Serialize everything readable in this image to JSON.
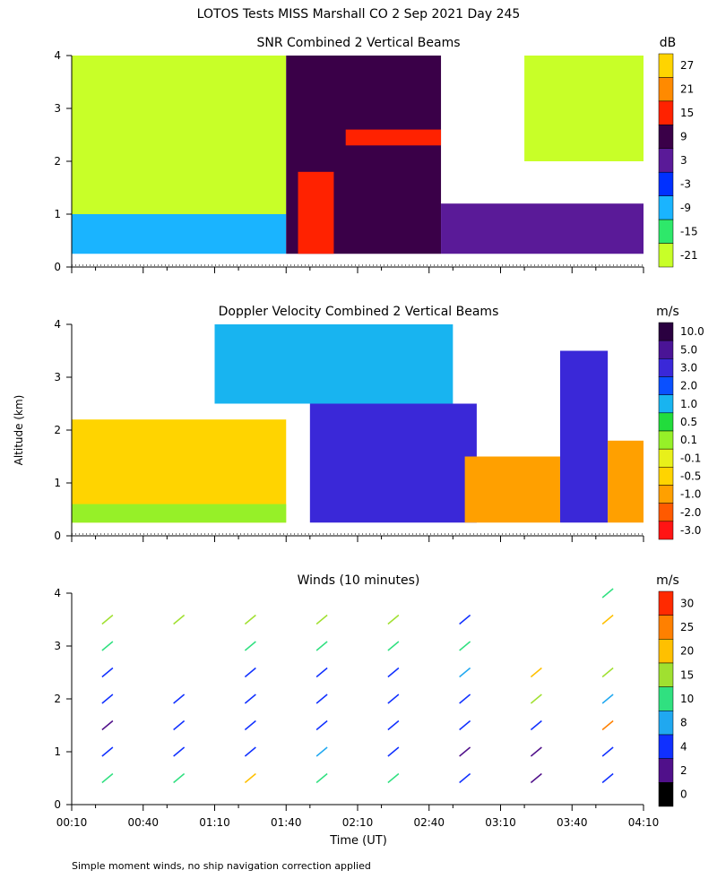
{
  "figure": {
    "title": "LOTOS Tests MISS Marshall CO    2 Sep 2021 Day 245",
    "ylabel": "Altitude (km)",
    "xlabel": "Time (UT)",
    "footnote": "Simple moment winds, no ship navigation correction applied",
    "x_ticks": [
      "00:10",
      "00:40",
      "01:10",
      "01:40",
      "02:10",
      "02:40",
      "03:10",
      "03:40",
      "04:10"
    ],
    "y_ticks": [
      "0",
      "1",
      "2",
      "3",
      "4"
    ]
  },
  "chart_data": [
    {
      "type": "heatmap",
      "title": "SNR Combined 2 Vertical Beams",
      "xlim": [
        "00:10",
        "04:10"
      ],
      "ylim": [
        0,
        4
      ],
      "colorbar": {
        "unit": "dB",
        "labels": [
          "27",
          "21",
          "15",
          "9",
          "3",
          "-3",
          "-9",
          "-15",
          "-21"
        ],
        "colors": [
          "#ffd400",
          "#ff8a00",
          "#ff2200",
          "#3a0048",
          "#5a1a98",
          "#0030ff",
          "#1ab4ff",
          "#2ee86a",
          "#c8ff28"
        ]
      },
      "regions": [
        {
          "t": [
            "00:10",
            "01:40"
          ],
          "alt": [
            1.0,
            4.0
          ],
          "level": "-21"
        },
        {
          "t": [
            "00:10",
            "01:40"
          ],
          "alt": [
            0.25,
            1.0
          ],
          "level": "-9"
        },
        {
          "t": [
            "01:40",
            "02:45"
          ],
          "alt": [
            0.25,
            4.0
          ],
          "level": "9"
        },
        {
          "t": [
            "02:05",
            "02:45"
          ],
          "alt": [
            2.3,
            2.6
          ],
          "level": "15"
        },
        {
          "t": [
            "01:45",
            "02:00"
          ],
          "alt": [
            0.25,
            1.8
          ],
          "level": "15"
        },
        {
          "t": [
            "02:45",
            "04:10"
          ],
          "alt": [
            0.25,
            1.2
          ],
          "level": "3"
        },
        {
          "t": [
            "03:20",
            "04:10"
          ],
          "alt": [
            2.0,
            4.0
          ],
          "level": "-21"
        }
      ]
    },
    {
      "type": "heatmap",
      "title": "Doppler Velocity Combined 2 Vertical Beams",
      "xlim": [
        "00:10",
        "04:10"
      ],
      "ylim": [
        0,
        4
      ],
      "colorbar": {
        "unit": "m/s",
        "labels": [
          "10.0",
          "5.0",
          "3.0",
          "2.0",
          "1.0",
          "0.5",
          "0.1",
          "-0.1",
          "-0.5",
          "-1.0",
          "-2.0",
          "-3.0"
        ],
        "colors": [
          "#2a0040",
          "#4a1496",
          "#3a28d8",
          "#0a50ff",
          "#18b4f0",
          "#22dc3c",
          "#96f028",
          "#e8f01a",
          "#ffd400",
          "#ffa000",
          "#ff5a00",
          "#ff1414"
        ]
      },
      "regions": [
        {
          "t": [
            "00:10",
            "01:40"
          ],
          "alt": [
            0.25,
            2.2
          ],
          "level": "-0.5"
        },
        {
          "t": [
            "00:10",
            "01:40"
          ],
          "alt": [
            0.25,
            0.6
          ],
          "level": "0.1"
        },
        {
          "t": [
            "01:10",
            "02:50"
          ],
          "alt": [
            2.5,
            4.0
          ],
          "level": "1.0"
        },
        {
          "t": [
            "01:50",
            "03:00"
          ],
          "alt": [
            0.25,
            2.5
          ],
          "level": "3.0"
        },
        {
          "t": [
            "02:55",
            "03:35"
          ],
          "alt": [
            0.25,
            1.5
          ],
          "level": "-1.0"
        },
        {
          "t": [
            "03:35",
            "03:55"
          ],
          "alt": [
            0.25,
            3.5
          ],
          "level": "3.0"
        },
        {
          "t": [
            "03:55",
            "04:10"
          ],
          "alt": [
            0.25,
            1.8
          ],
          "level": "-1.0"
        }
      ]
    },
    {
      "type": "scatter",
      "title": "Winds (10 minutes)",
      "xlim": [
        "00:10",
        "04:10"
      ],
      "ylim": [
        0,
        4
      ],
      "colorbar": {
        "unit": "m/s",
        "labels": [
          "30",
          "25",
          "20",
          "15",
          "10",
          "8",
          "4",
          "2",
          "0"
        ],
        "colors": [
          "#ff2a00",
          "#ff8000",
          "#ffc000",
          "#a0e030",
          "#30e080",
          "#20a8f0",
          "#1030ff",
          "#50108a",
          "#000000"
        ]
      },
      "profiles": [
        {
          "time": "00:25",
          "points": [
            {
              "alt": 0.5,
              "speed": 14
            },
            {
              "alt": 1.0,
              "speed": 7
            },
            {
              "alt": 1.5,
              "speed": 3
            },
            {
              "alt": 2.0,
              "speed": 4
            },
            {
              "alt": 2.5,
              "speed": 6
            },
            {
              "alt": 3.0,
              "speed": 10
            },
            {
              "alt": 3.5,
              "speed": 15
            }
          ]
        },
        {
          "time": "00:55",
          "points": [
            {
              "alt": 0.5,
              "speed": 10
            },
            {
              "alt": 1.0,
              "speed": 5
            },
            {
              "alt": 1.5,
              "speed": 4
            },
            {
              "alt": 2.0,
              "speed": 5
            },
            {
              "alt": 3.5,
              "speed": 18
            }
          ]
        },
        {
          "time": "01:25",
          "points": [
            {
              "alt": 0.5,
              "speed": 21
            },
            {
              "alt": 1.0,
              "speed": 6
            },
            {
              "alt": 1.5,
              "speed": 4
            },
            {
              "alt": 2.0,
              "speed": 5
            },
            {
              "alt": 2.5,
              "speed": 4
            },
            {
              "alt": 3.0,
              "speed": 12
            },
            {
              "alt": 3.5,
              "speed": 15
            }
          ]
        },
        {
          "time": "01:55",
          "points": [
            {
              "alt": 0.5,
              "speed": 10
            },
            {
              "alt": 1.0,
              "speed": 8
            },
            {
              "alt": 1.5,
              "speed": 5
            },
            {
              "alt": 2.0,
              "speed": 4
            },
            {
              "alt": 2.5,
              "speed": 5
            },
            {
              "alt": 3.0,
              "speed": 13
            },
            {
              "alt": 3.5,
              "speed": 16
            }
          ]
        },
        {
          "time": "02:25",
          "points": [
            {
              "alt": 0.5,
              "speed": 11
            },
            {
              "alt": 1.0,
              "speed": 5
            },
            {
              "alt": 1.5,
              "speed": 4
            },
            {
              "alt": 2.0,
              "speed": 4
            },
            {
              "alt": 2.5,
              "speed": 6
            },
            {
              "alt": 3.0,
              "speed": 12
            },
            {
              "alt": 3.5,
              "speed": 17
            }
          ]
        },
        {
          "time": "02:55",
          "points": [
            {
              "alt": 0.5,
              "speed": 4
            },
            {
              "alt": 1.0,
              "speed": 3
            },
            {
              "alt": 1.5,
              "speed": 4
            },
            {
              "alt": 2.0,
              "speed": 5
            },
            {
              "alt": 2.5,
              "speed": 9
            },
            {
              "alt": 3.0,
              "speed": 13
            },
            {
              "alt": 3.5,
              "speed": 5
            }
          ]
        },
        {
          "time": "03:25",
          "points": [
            {
              "alt": 0.5,
              "speed": 2
            },
            {
              "alt": 1.0,
              "speed": 3
            },
            {
              "alt": 1.5,
              "speed": 6
            },
            {
              "alt": 2.0,
              "speed": 16
            },
            {
              "alt": 2.5,
              "speed": 22
            }
          ]
        },
        {
          "time": "03:55",
          "points": [
            {
              "alt": 0.5,
              "speed": 5
            },
            {
              "alt": 1.0,
              "speed": 6
            },
            {
              "alt": 1.5,
              "speed": 28
            },
            {
              "alt": 2.0,
              "speed": 9
            },
            {
              "alt": 2.5,
              "speed": 18
            },
            {
              "alt": 3.5,
              "speed": 20
            },
            {
              "alt": 4.0,
              "speed": 14
            }
          ]
        }
      ]
    }
  ]
}
